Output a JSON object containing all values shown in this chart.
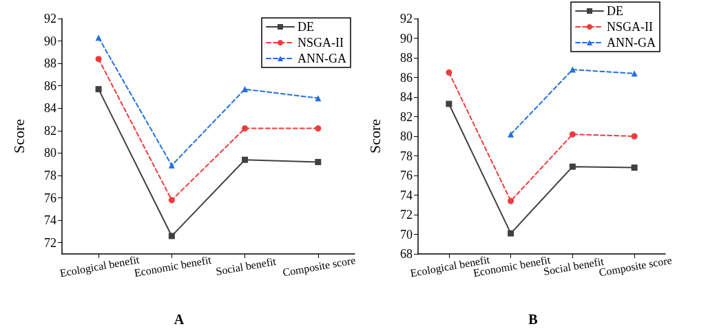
{
  "chart_data": [
    {
      "type": "line",
      "title": "A",
      "ylabel": "Score",
      "categories": [
        "Ecological benefit",
        "Economic benefit",
        "Social benefit",
        "Composite score"
      ],
      "series": [
        {
          "name": "DE",
          "color": "#404040",
          "marker": "square",
          "line_style": "solid",
          "values": [
            85.7,
            72.6,
            79.4,
            79.2
          ]
        },
        {
          "name": "NSGA-II",
          "color": "#ee3b3b",
          "marker": "circle",
          "line_style": "dashed",
          "values": [
            88.4,
            75.8,
            82.2,
            82.2
          ]
        },
        {
          "name": "ANN-GA",
          "color": "#1f6fe0",
          "marker": "triangle",
          "line_style": "dashed",
          "values": [
            90.3,
            78.9,
            85.7,
            84.9
          ]
        }
      ],
      "ylim": [
        71,
        92
      ],
      "yticks": [
        72,
        74,
        76,
        78,
        80,
        82,
        84,
        86,
        88,
        90,
        92
      ],
      "grid": false,
      "legend": "top right"
    },
    {
      "type": "line",
      "title": "B",
      "ylabel": "Score",
      "categories": [
        "Ecological benefit",
        "Economic benefit",
        "Social benefit",
        "Composite score"
      ],
      "series": [
        {
          "name": "DE",
          "color": "#404040",
          "marker": "square",
          "line_style": "solid",
          "values": [
            83.3,
            70.1,
            76.9,
            76.8
          ]
        },
        {
          "name": "NSGA-II",
          "color": "#ee3b3b",
          "marker": "circle",
          "line_style": "dashed",
          "values": [
            86.5,
            73.4,
            80.2,
            80.0
          ]
        },
        {
          "name": "ANN-GA",
          "color": "#1f6fe0",
          "marker": "triangle",
          "line_style": "dashed",
          "values": [
            null,
            80.2,
            86.8,
            86.4
          ]
        }
      ],
      "ylim": [
        68,
        92
      ],
      "yticks": [
        68,
        70,
        72,
        74,
        76,
        78,
        80,
        82,
        84,
        86,
        88,
        90,
        92
      ],
      "grid": false,
      "legend": "top right"
    }
  ]
}
